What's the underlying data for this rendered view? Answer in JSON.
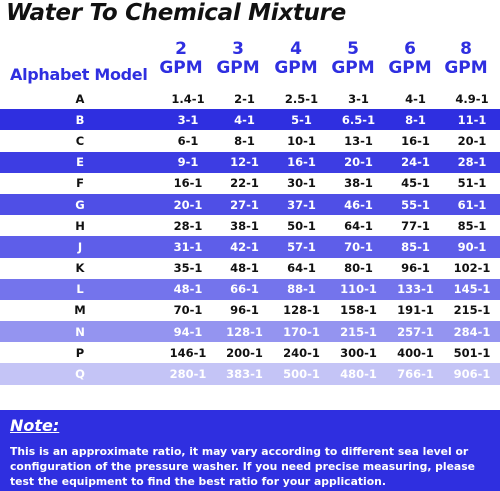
{
  "title": "Water To Chemical Mixture",
  "header": {
    "model_label": "Alphabet Model",
    "columns": [
      {
        "num": "2",
        "unit": "GPM"
      },
      {
        "num": "3",
        "unit": "GPM"
      },
      {
        "num": "4",
        "unit": "GPM"
      },
      {
        "num": "5",
        "unit": "GPM"
      },
      {
        "num": "6",
        "unit": "GPM"
      },
      {
        "num": "8",
        "unit": "GPM"
      }
    ]
  },
  "rows": [
    {
      "model": "A",
      "values": [
        "1.4-1",
        "2-1",
        "2.5-1",
        "3-1",
        "4-1",
        "4.9-1"
      ],
      "band": "white"
    },
    {
      "model": "B",
      "values": [
        "3-1",
        "4-1",
        "5-1",
        "6.5-1",
        "8-1",
        "11-1"
      ],
      "band": "#2f2fe0"
    },
    {
      "model": "C",
      "values": [
        "6-1",
        "8-1",
        "10-1",
        "13-1",
        "16-1",
        "20-1"
      ],
      "band": "white"
    },
    {
      "model": "E",
      "values": [
        "9-1",
        "12-1",
        "16-1",
        "20-1",
        "24-1",
        "28-1"
      ],
      "band": "#3d3de3"
    },
    {
      "model": "F",
      "values": [
        "16-1",
        "22-1",
        "30-1",
        "38-1",
        "45-1",
        "51-1"
      ],
      "band": "white"
    },
    {
      "model": "G",
      "values": [
        "20-1",
        "27-1",
        "37-1",
        "46-1",
        "55-1",
        "61-1"
      ],
      "band": "#4f4fe6"
    },
    {
      "model": "H",
      "values": [
        "28-1",
        "38-1",
        "50-1",
        "64-1",
        "77-1",
        "85-1"
      ],
      "band": "white"
    },
    {
      "model": "J",
      "values": [
        "31-1",
        "42-1",
        "57-1",
        "70-1",
        "85-1",
        "90-1"
      ],
      "band": "#5e5ee9"
    },
    {
      "model": "K",
      "values": [
        "35-1",
        "48-1",
        "64-1",
        "80-1",
        "96-1",
        "102-1"
      ],
      "band": "white"
    },
    {
      "model": "L",
      "values": [
        "48-1",
        "66-1",
        "88-1",
        "110-1",
        "133-1",
        "145-1"
      ],
      "band": "#7474ec"
    },
    {
      "model": "M",
      "values": [
        "70-1",
        "96-1",
        "128-1",
        "158-1",
        "191-1",
        "215-1"
      ],
      "band": "white"
    },
    {
      "model": "N",
      "values": [
        "94-1",
        "128-1",
        "170-1",
        "215-1",
        "257-1",
        "284-1"
      ],
      "band": "#9494f0"
    },
    {
      "model": "P",
      "values": [
        "146-1",
        "200-1",
        "240-1",
        "300-1",
        "400-1",
        "501-1"
      ],
      "band": "white"
    },
    {
      "model": "Q",
      "values": [
        "280-1",
        "383-1",
        "500-1",
        "480-1",
        "766-1",
        "906-1"
      ],
      "band": "#c4c4f6"
    }
  ],
  "note": {
    "title": "Note:",
    "text": "This is an approximate ratio, it may vary according to different sea level or configuration of the pressure washer. If you need precise measuring, please test the equipment to find the best ratio for your application."
  }
}
